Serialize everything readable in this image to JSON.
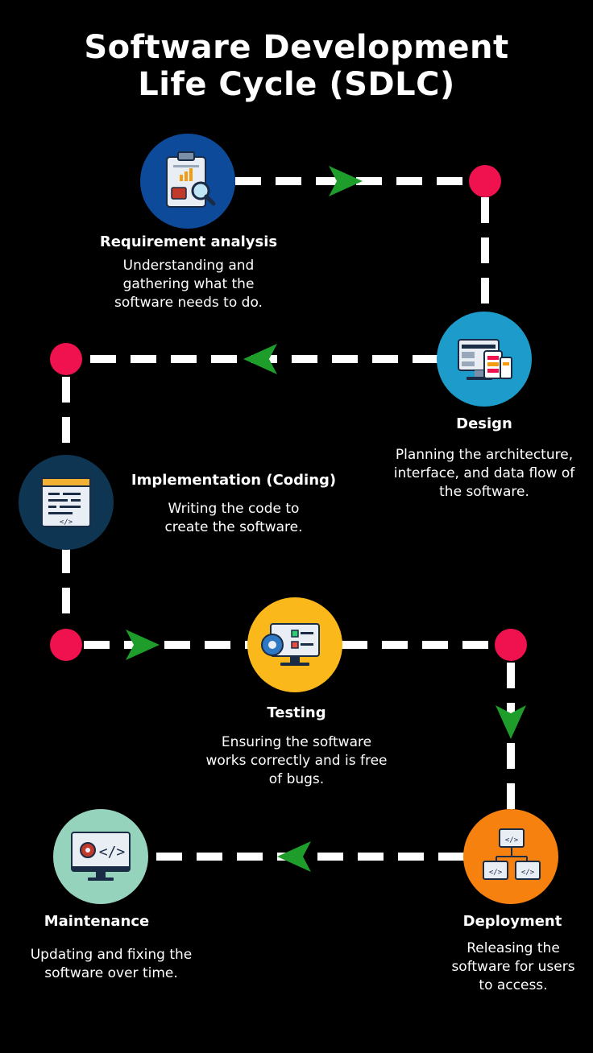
{
  "title": {
    "line1": "Software Development",
    "line2": "Life Cycle (SDLC)"
  },
  "colors": {
    "background": "#000000",
    "connector": "#ffffff",
    "arrow": "#1f9d2a",
    "node_dot": "#f0124f"
  },
  "stages": [
    {
      "name": "Requirement analysis",
      "description": "Understanding and gathering what the software needs to do.",
      "icon": "clipboard-magnifier-icon",
      "color": "#0d4a9a"
    },
    {
      "name": "Design",
      "description": "Planning the architecture, interface, and data flow of the software.",
      "icon": "devices-layout-icon",
      "color": "#1d9ccb"
    },
    {
      "name": "Implementation (Coding)",
      "description": "Writing the code to create the software.",
      "icon": "code-window-icon",
      "color": "#0e3552"
    },
    {
      "name": "Testing",
      "description": "Ensuring the software works correctly and is free of bugs.",
      "icon": "monitor-checklist-gear-icon",
      "color": "#fbb81a"
    },
    {
      "name": "Deployment",
      "description": "Releasing the software for users to access.",
      "icon": "network-code-icon",
      "color": "#f7810f"
    },
    {
      "name": "Maintenance",
      "description": "Updating and fixing the software over time.",
      "icon": "monitor-code-gear-icon",
      "color": "#95d3bd"
    }
  ]
}
